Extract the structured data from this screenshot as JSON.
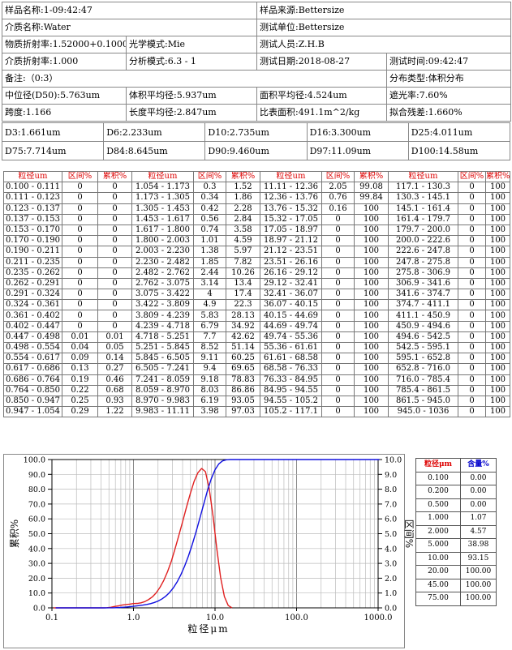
{
  "info": {
    "sample_name": "样品名称:1-09:42:47",
    "sample_source": "样品来源:Bettersize",
    "medium_name": "介质名称:Water",
    "test_unit": "测试单位:Bettersize",
    "refractive_index": "物质折射率:1.52000+0.10000i",
    "optical_mode": "光学模式:Mie",
    "tester": "测试人员:Z.H.B",
    "medium_ri": "介质折射率:1.000",
    "analysis_mode": "分析模式:6.3 - 1",
    "test_date": "测试日期:2018-08-27",
    "test_time": "测试时间:09:42:47",
    "remark": "备注:（0:3）",
    "distribution_type": "分布类型:体积分布",
    "d50": "中位径(D50):5.763um",
    "volume_mean": "体积平均径:5.937um",
    "area_mean": "面积平均径:4.524um",
    "obscuration": "遮光率:7.60%",
    "span": "跨度:1.166",
    "length_mean": "长度平均径:2.847um",
    "specific_surface": "比表面积:491.1m^2/kg",
    "residual": "拟合残差:1.660%"
  },
  "d_values": [
    [
      "D3:1.661um",
      "D6:2.233um",
      "D10:2.735um",
      "D16:3.300um",
      "D25:4.011um"
    ],
    [
      "D75:7.714um",
      "D84:8.645um",
      "D90:9.460um",
      "D97:11.09um",
      "D100:14.58um"
    ]
  ],
  "dist_header": [
    "粒径um",
    "区间%",
    "累积%"
  ],
  "dist_rows": [
    [
      "0.100 - 0.111",
      "0",
      "0",
      "1.054 - 1.173",
      "0.3",
      "1.52",
      "11.11 - 12.36",
      "2.05",
      "99.08",
      "117.1 - 130.3",
      "0",
      "100"
    ],
    [
      "0.111 - 0.123",
      "0",
      "0",
      "1.173 - 1.305",
      "0.34",
      "1.86",
      "12.36 - 13.76",
      "0.76",
      "99.84",
      "130.3 - 145.1",
      "0",
      "100"
    ],
    [
      "0.123 - 0.137",
      "0",
      "0",
      "1.305 - 1.453",
      "0.42",
      "2.28",
      "13.76 - 15.32",
      "0.16",
      "100",
      "145.1 - 161.4",
      "0",
      "100"
    ],
    [
      "0.137 - 0.153",
      "0",
      "0",
      "1.453 - 1.617",
      "0.56",
      "2.84",
      "15.32 - 17.05",
      "0",
      "100",
      "161.4 - 179.7",
      "0",
      "100"
    ],
    [
      "0.153 - 0.170",
      "0",
      "0",
      "1.617 - 1.800",
      "0.74",
      "3.58",
      "17.05 - 18.97",
      "0",
      "100",
      "179.7 - 200.0",
      "0",
      "100"
    ],
    [
      "0.170 - 0.190",
      "0",
      "0",
      "1.800 - 2.003",
      "1.01",
      "4.59",
      "18.97 - 21.12",
      "0",
      "100",
      "200.0 - 222.6",
      "0",
      "100"
    ],
    [
      "0.190 - 0.211",
      "0",
      "0",
      "2.003 - 2.230",
      "1.38",
      "5.97",
      "21.12 - 23.51",
      "0",
      "100",
      "222.6 - 247.8",
      "0",
      "100"
    ],
    [
      "0.211 - 0.235",
      "0",
      "0",
      "2.230 - 2.482",
      "1.85",
      "7.82",
      "23.51 - 26.16",
      "0",
      "100",
      "247.8 - 275.8",
      "0",
      "100"
    ],
    [
      "0.235 - 0.262",
      "0",
      "0",
      "2.482 - 2.762",
      "2.44",
      "10.26",
      "26.16 - 29.12",
      "0",
      "100",
      "275.8 - 306.9",
      "0",
      "100"
    ],
    [
      "0.262 - 0.291",
      "0",
      "0",
      "2.762 - 3.075",
      "3.14",
      "13.4",
      "29.12 - 32.41",
      "0",
      "100",
      "306.9 - 341.6",
      "0",
      "100"
    ],
    [
      "0.291 - 0.324",
      "0",
      "0",
      "3.075 - 3.422",
      "4",
      "17.4",
      "32.41 - 36.07",
      "0",
      "100",
      "341.6 - 374.7",
      "0",
      "100"
    ],
    [
      "0.324 - 0.361",
      "0",
      "0",
      "3.422 - 3.809",
      "4.9",
      "22.3",
      "36.07 - 40.15",
      "0",
      "100",
      "374.7 - 411.1",
      "0",
      "100"
    ],
    [
      "0.361 - 0.402",
      "0",
      "0",
      "3.809 - 4.239",
      "5.83",
      "28.13",
      "40.15 - 44.69",
      "0",
      "100",
      "411.1 - 450.9",
      "0",
      "100"
    ],
    [
      "0.402 - 0.447",
      "0",
      "0",
      "4.239 - 4.718",
      "6.79",
      "34.92",
      "44.69 - 49.74",
      "0",
      "100",
      "450.9 - 494.6",
      "0",
      "100"
    ],
    [
      "0.447 - 0.498",
      "0.01",
      "0.01",
      "4.718 - 5.251",
      "7.7",
      "42.62",
      "49.74 - 55.36",
      "0",
      "100",
      "494.6 - 542.5",
      "0",
      "100"
    ],
    [
      "0.498 - 0.554",
      "0.04",
      "0.05",
      "5.251 - 5.845",
      "8.52",
      "51.14",
      "55.36 - 61.61",
      "0",
      "100",
      "542.5 - 595.1",
      "0",
      "100"
    ],
    [
      "0.554 - 0.617",
      "0.09",
      "0.14",
      "5.845 - 6.505",
      "9.11",
      "60.25",
      "61.61 - 68.58",
      "0",
      "100",
      "595.1 - 652.8",
      "0",
      "100"
    ],
    [
      "0.617 - 0.686",
      "0.13",
      "0.27",
      "6.505 - 7.241",
      "9.4",
      "69.65",
      "68.58 - 76.33",
      "0",
      "100",
      "652.8 - 716.0",
      "0",
      "100"
    ],
    [
      "0.686 - 0.764",
      "0.19",
      "0.46",
      "7.241 - 8.059",
      "9.18",
      "78.83",
      "76.33 - 84.95",
      "0",
      "100",
      "716.0 - 785.4",
      "0",
      "100"
    ],
    [
      "0.764 - 0.850",
      "0.22",
      "0.68",
      "8.059 - 8.970",
      "8.03",
      "86.86",
      "84.95 - 94.55",
      "0",
      "100",
      "785.4 - 861.5",
      "0",
      "100"
    ],
    [
      "0.850 - 0.947",
      "0.25",
      "0.93",
      "8.970 - 9.983",
      "6.19",
      "93.05",
      "94.55 - 105.2",
      "0",
      "100",
      "861.5 - 945.0",
      "0",
      "100"
    ],
    [
      "0.947 - 1.054",
      "0.29",
      "1.22",
      "9.983 - 11.11",
      "3.98",
      "97.03",
      "105.2 - 117.1",
      "0",
      "100",
      "945.0 - 1036",
      "0",
      "100"
    ]
  ],
  "point_table": {
    "header": [
      "粒径μm",
      "含量%"
    ],
    "rows": [
      [
        "0.100",
        "0.00"
      ],
      [
        "0.200",
        "0.00"
      ],
      [
        "0.500",
        "0.00"
      ],
      [
        "1.000",
        "1.07"
      ],
      [
        "2.000",
        "4.57"
      ],
      [
        "5.000",
        "38.98"
      ],
      [
        "10.00",
        "93.15"
      ],
      [
        "20.00",
        "100.00"
      ],
      [
        "45.00",
        "100.00"
      ],
      [
        "75.00",
        "100.00"
      ]
    ]
  },
  "colors": {
    "interval": "#e02020",
    "cumulative": "#1010e0",
    "header_red": "#dd0000"
  },
  "chart_data": {
    "type": "line",
    "x_scale": "log",
    "xlim": [
      0.1,
      1000
    ],
    "x_ticks": [
      "0.1",
      "1.0",
      "10.0",
      "100.0",
      "1000.0"
    ],
    "y_left_ticks": [
      "0.0",
      "10.0",
      "20.0",
      "30.0",
      "40.0",
      "50.0",
      "60.0",
      "70.0",
      "80.0",
      "90.0",
      "100.0"
    ],
    "y_right_ticks": [
      "0.0",
      "1.0",
      "2.0",
      "3.0",
      "4.0",
      "5.0",
      "6.0",
      "7.0",
      "8.0",
      "9.0",
      "10.0"
    ],
    "ylim_left": [
      0,
      100
    ],
    "ylim_right": [
      0,
      10
    ],
    "xlabel": "粒径μm",
    "ylabel_left": "累积%",
    "ylabel_right": "区间%",
    "series": [
      {
        "axis": "right",
        "x": [
          0.105,
          0.117,
          0.13,
          0.145,
          0.161,
          0.18,
          0.2,
          0.223,
          0.248,
          0.276,
          0.307,
          0.342,
          0.38,
          0.424,
          0.472,
          0.525,
          0.585,
          0.651,
          0.724,
          0.806,
          0.897,
          0.998,
          1.111,
          1.236,
          1.376,
          1.532,
          1.705,
          1.897,
          2.112,
          2.351,
          2.616,
          2.912,
          3.241,
          3.607,
          4.015,
          4.469,
          4.974,
          5.536,
          6.161,
          6.858,
          7.633,
          8.495,
          9.455,
          10.52,
          11.71,
          13.03,
          14.51,
          16.15
        ],
        "y": [
          0,
          0,
          0,
          0,
          0,
          0,
          0,
          0,
          0,
          0,
          0,
          0,
          0,
          0,
          0.01,
          0.04,
          0.09,
          0.13,
          0.19,
          0.22,
          0.25,
          0.29,
          0.3,
          0.34,
          0.42,
          0.56,
          0.74,
          1.01,
          1.38,
          1.85,
          2.44,
          3.14,
          4,
          4.9,
          5.83,
          6.79,
          7.7,
          8.52,
          9.11,
          9.4,
          9.18,
          8.03,
          6.19,
          3.98,
          2.05,
          0.76,
          0.16,
          0
        ]
      },
      {
        "axis": "left",
        "x": [
          0.111,
          0.123,
          0.137,
          0.153,
          0.17,
          0.19,
          0.211,
          0.235,
          0.262,
          0.291,
          0.324,
          0.361,
          0.402,
          0.447,
          0.498,
          0.554,
          0.617,
          0.686,
          0.764,
          0.85,
          0.947,
          1.054,
          1.173,
          1.305,
          1.453,
          1.617,
          1.8,
          2.003,
          2.23,
          2.482,
          2.762,
          3.075,
          3.422,
          3.809,
          4.239,
          4.718,
          5.251,
          5.845,
          6.505,
          7.241,
          8.059,
          8.97,
          9.983,
          11.11,
          12.36,
          13.76,
          15.32,
          1036
        ],
        "y": [
          0,
          0,
          0,
          0,
          0,
          0,
          0,
          0,
          0,
          0,
          0,
          0,
          0,
          0,
          0.01,
          0.05,
          0.14,
          0.27,
          0.46,
          0.68,
          0.93,
          1.22,
          1.52,
          1.86,
          2.28,
          2.84,
          3.58,
          4.59,
          5.97,
          7.82,
          10.26,
          13.4,
          17.4,
          22.3,
          28.13,
          34.92,
          42.62,
          51.14,
          60.25,
          69.65,
          78.83,
          86.86,
          93.05,
          97.03,
          99.08,
          99.84,
          100,
          100
        ]
      }
    ]
  }
}
